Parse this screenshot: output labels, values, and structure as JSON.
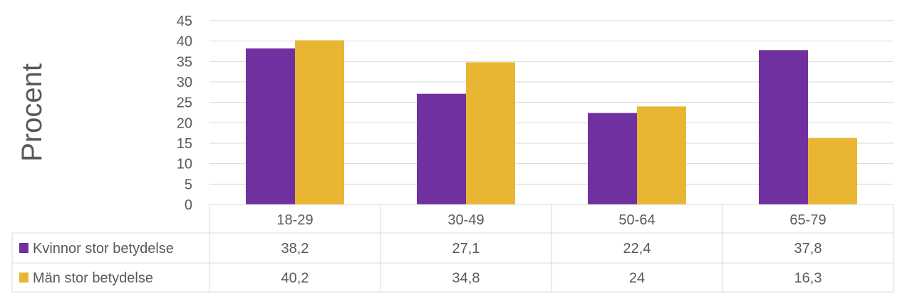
{
  "chart_data": {
    "type": "bar",
    "title": "",
    "xlabel": "",
    "ylabel": "Procent",
    "ylim": [
      0,
      45
    ],
    "yticks": [
      0,
      5,
      10,
      15,
      20,
      25,
      30,
      35,
      40,
      45
    ],
    "grid": true,
    "legend": "data-table",
    "categories": [
      "18-29",
      "30-49",
      "50-64",
      "65-79"
    ],
    "series": [
      {
        "name": "Kvinnor stor betydelse",
        "color": "#7030A0",
        "values": [
          38.2,
          27.1,
          22.4,
          37.8
        ],
        "labels": [
          "38,2",
          "27,1",
          "22,4",
          "37,8"
        ]
      },
      {
        "name": "Män stor betydelse",
        "color": "#E8B632",
        "values": [
          40.2,
          34.8,
          24,
          16.3
        ],
        "labels": [
          "40,2",
          "34,8",
          "24",
          "16,3"
        ]
      }
    ]
  }
}
